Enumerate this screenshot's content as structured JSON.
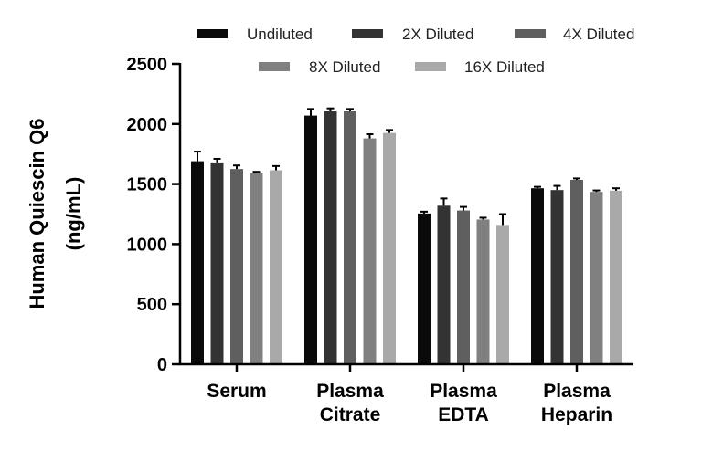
{
  "chart_data": {
    "type": "bar",
    "ylabel": [
      "Human Quiescin Q6",
      "(ng/mL)"
    ],
    "ylim": [
      0,
      2500
    ],
    "yticks": [
      0,
      500,
      1000,
      1500,
      2000,
      2500
    ],
    "categories": [
      [
        "Serum"
      ],
      [
        "Plasma",
        "Citrate"
      ],
      [
        "Plasma",
        "EDTA"
      ],
      [
        "Plasma",
        "Heparin"
      ]
    ],
    "series": [
      {
        "name": "Undiluted",
        "color": "#0a0a0a",
        "values": [
          1690,
          2070,
          1255,
          1465
        ],
        "errors": [
          80,
          55,
          15,
          12
        ]
      },
      {
        "name": "2X Diluted",
        "color": "#333333",
        "values": [
          1680,
          2105,
          1320,
          1450
        ],
        "errors": [
          30,
          25,
          60,
          35
        ]
      },
      {
        "name": "4X Diluted",
        "color": "#5f5f5f",
        "values": [
          1625,
          2105,
          1280,
          1535
        ],
        "errors": [
          30,
          20,
          30,
          12
        ]
      },
      {
        "name": "8X Diluted",
        "color": "#808080",
        "values": [
          1590,
          1880,
          1205,
          1435
        ],
        "errors": [
          12,
          35,
          15,
          12
        ]
      },
      {
        "name": "16X Diluted",
        "color": "#a9a9a9",
        "values": [
          1615,
          1925,
          1160,
          1445
        ],
        "errors": [
          35,
          25,
          90,
          20
        ]
      }
    ],
    "legend_position": "top"
  }
}
